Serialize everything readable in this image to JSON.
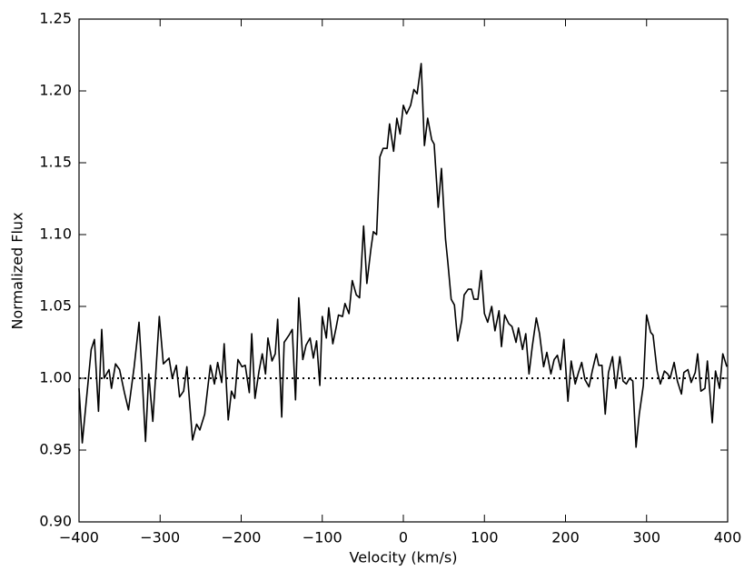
{
  "chart_data": {
    "type": "line",
    "xlabel": "Velocity (km/s)",
    "ylabel": "Normalized Flux",
    "x": [
      -400,
      -396,
      -385,
      -381,
      -376,
      -372,
      -369,
      -363,
      -360,
      -355,
      -350,
      -344,
      -339,
      -332,
      -326,
      -323,
      -318,
      -314,
      -309,
      -301,
      -296,
      -289,
      -285,
      -280,
      -276,
      -271,
      -267,
      -260,
      -255,
      -251,
      -245,
      -238,
      -233,
      -229,
      -224,
      -221,
      -216,
      -212,
      -208,
      -204,
      -199,
      -195,
      -190,
      -187,
      -183,
      -178,
      -174,
      -170,
      -167,
      -162,
      -158,
      -155,
      -150,
      -147,
      -141,
      -137,
      -133,
      -129,
      -124,
      -120,
      -115,
      -111,
      -107,
      -103,
      -100,
      -95,
      -92,
      -87,
      -83,
      -80,
      -75,
      -72,
      -67,
      -63,
      -58,
      -54,
      -49,
      -45,
      -40,
      -37,
      -33,
      -29,
      -25,
      -20,
      -17,
      -12,
      -8,
      -4,
      0,
      4,
      9,
      13,
      17,
      22,
      26,
      30,
      35,
      38,
      43,
      47,
      52,
      55,
      59,
      63,
      67,
      72,
      75,
      80,
      84,
      87,
      92,
      96,
      100,
      104,
      109,
      113,
      118,
      121,
      125,
      130,
      134,
      139,
      142,
      147,
      151,
      155,
      159,
      164,
      168,
      173,
      177,
      182,
      186,
      190,
      194,
      198,
      203,
      207,
      212,
      216,
      220,
      224,
      229,
      233,
      238,
      241,
      245,
      249,
      253,
      258,
      262,
      267,
      271,
      275,
      279,
      283,
      287,
      291,
      296,
      300,
      305,
      308,
      313,
      317,
      322,
      326,
      329,
      334,
      338,
      343,
      346,
      351,
      355,
      360,
      363,
      367,
      372,
      375,
      381,
      385,
      390,
      394,
      399
    ],
    "series": [
      {
        "color": "#000000",
        "values": [
          0.993,
          0.955,
          1.02,
          1.027,
          0.977,
          1.034,
          1.0,
          1.006,
          0.993,
          1.01,
          1.006,
          0.99,
          0.978,
          1.008,
          1.039,
          1.01,
          0.956,
          1.003,
          0.97,
          1.043,
          1.01,
          1.014,
          1.0,
          1.009,
          0.987,
          0.991,
          1.008,
          0.957,
          0.968,
          0.964,
          0.975,
          1.009,
          0.996,
          1.011,
          0.997,
          1.024,
          0.971,
          0.991,
          0.986,
          1.013,
          1.008,
          1.009,
          0.99,
          1.031,
          0.986,
          1.005,
          1.017,
          1.003,
          1.028,
          1.012,
          1.017,
          1.041,
          0.973,
          1.025,
          1.03,
          1.034,
          0.985,
          1.056,
          1.013,
          1.023,
          1.028,
          1.014,
          1.026,
          0.995,
          1.043,
          1.028,
          1.049,
          1.024,
          1.035,
          1.044,
          1.043,
          1.052,
          1.045,
          1.068,
          1.058,
          1.056,
          1.106,
          1.066,
          1.09,
          1.102,
          1.1,
          1.154,
          1.16,
          1.16,
          1.177,
          1.158,
          1.181,
          1.17,
          1.19,
          1.184,
          1.19,
          1.201,
          1.198,
          1.219,
          1.162,
          1.181,
          1.166,
          1.163,
          1.119,
          1.146,
          1.097,
          1.08,
          1.055,
          1.051,
          1.026,
          1.04,
          1.058,
          1.062,
          1.062,
          1.055,
          1.055,
          1.075,
          1.045,
          1.039,
          1.05,
          1.033,
          1.047,
          1.022,
          1.044,
          1.038,
          1.036,
          1.025,
          1.035,
          1.02,
          1.031,
          1.003,
          1.022,
          1.042,
          1.031,
          1.008,
          1.018,
          1.003,
          1.013,
          1.016,
          1.006,
          1.027,
          0.984,
          1.012,
          0.996,
          1.004,
          1.011,
          0.999,
          0.994,
          1.005,
          1.017,
          1.009,
          1.009,
          0.975,
          1.004,
          1.015,
          0.993,
          1.015,
          0.998,
          0.996,
          1.0,
          0.998,
          0.952,
          0.975,
          0.995,
          1.044,
          1.032,
          1.03,
          1.005,
          0.996,
          1.005,
          1.003,
          1.0,
          1.011,
          0.998,
          0.989,
          1.004,
          1.006,
          0.997,
          1.004,
          1.017,
          0.991,
          0.993,
          1.012,
          0.969,
          1.005,
          0.993,
          1.017,
          1.008
        ]
      }
    ],
    "hline": {
      "y": 1.0,
      "style": "dotted",
      "color": "#000000"
    },
    "xlim": [
      -400,
      400
    ],
    "xticks": [
      {
        "value": -400,
        "label": "−400"
      },
      {
        "value": -300,
        "label": "−300"
      },
      {
        "value": -200,
        "label": "−200"
      },
      {
        "value": -100,
        "label": "−100"
      },
      0,
      100,
      200,
      300,
      400
    ],
    "ylim": [
      0.9,
      1.25
    ],
    "yticks": [
      {
        "value": 0.9,
        "label": "0.90"
      },
      0.95,
      {
        "value": 1.0,
        "label": "1.00"
      },
      1.05,
      {
        "value": 1.1,
        "label": "1.10"
      },
      1.15,
      {
        "value": 1.2,
        "label": "1.20"
      },
      1.25
    ],
    "grid": false
  }
}
